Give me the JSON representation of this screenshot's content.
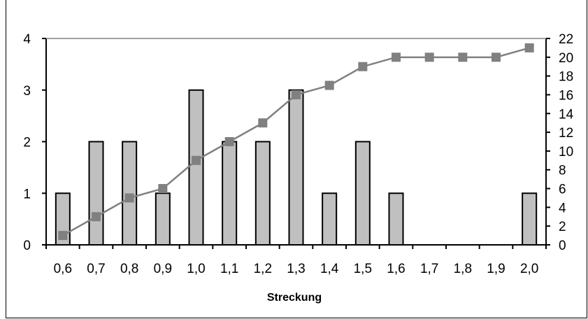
{
  "chart_data": {
    "type": "bar",
    "title": "",
    "xlabel": "Streckung",
    "ylabel_left": "",
    "ylabel_right": "",
    "categories": [
      "0,6",
      "0,7",
      "0,8",
      "0,9",
      "1,0",
      "1,1",
      "1,2",
      "1,3",
      "1,4",
      "1,5",
      "1,6",
      "1,7",
      "1,8",
      "1,9",
      "2,0"
    ],
    "series": [
      {
        "type": "bar",
        "axis": "left",
        "values": [
          1,
          2,
          2,
          1,
          3,
          2,
          2,
          3,
          1,
          2,
          1,
          0,
          0,
          0,
          1
        ],
        "color": "#c0c0c0"
      },
      {
        "type": "line",
        "axis": "right",
        "values": [
          1,
          3,
          5,
          6,
          9,
          11,
          13,
          16,
          17,
          19,
          20,
          20,
          20,
          20,
          21
        ],
        "color": "#808080"
      }
    ],
    "y_left": {
      "min": 0,
      "max": 4,
      "ticks": [
        0,
        1,
        2,
        3,
        4
      ]
    },
    "y_right": {
      "min": 0,
      "max": 22,
      "ticks": [
        0,
        2,
        4,
        6,
        8,
        10,
        12,
        14,
        16,
        18,
        20,
        22
      ]
    },
    "grid": false,
    "legend": "none"
  }
}
